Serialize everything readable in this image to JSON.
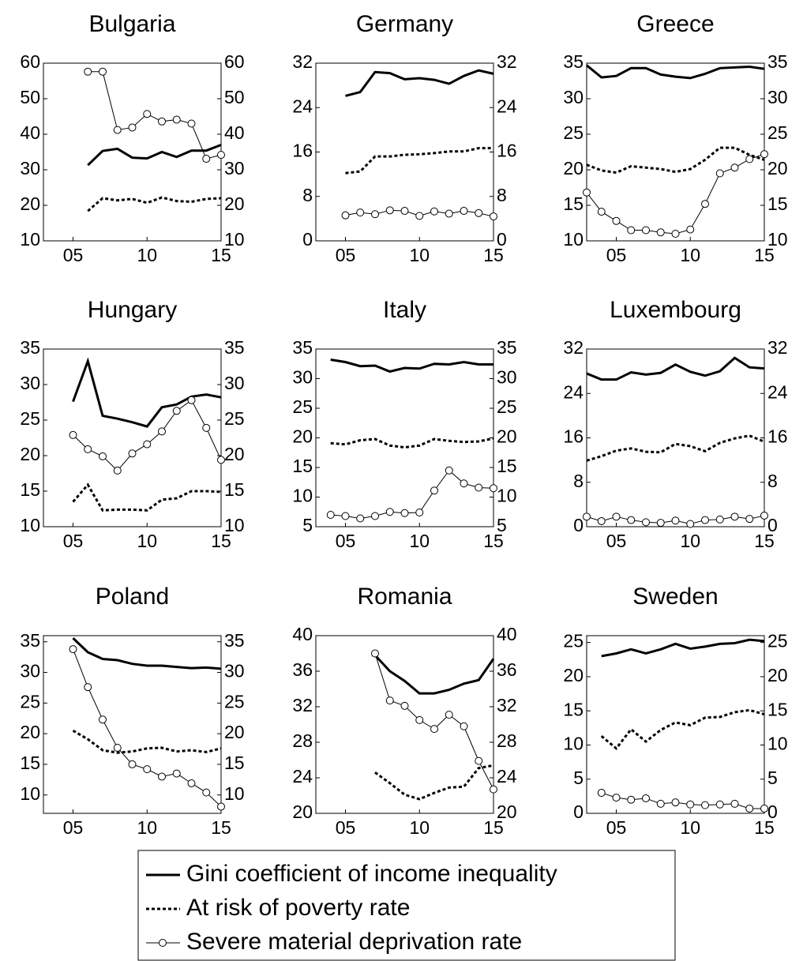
{
  "legend": [
    {
      "name": "Gini coefficient of income inequality",
      "color": "#000000",
      "style": "solid"
    },
    {
      "name": "At risk of poverty rate",
      "color": "#000000",
      "style": "dashed"
    },
    {
      "name": "Severe material deprivation rate",
      "color": "#000000",
      "style": "thin-circle"
    }
  ],
  "chart_data": [
    {
      "type": "line",
      "title": "Bulgaria",
      "xlim": [
        2003,
        2015
      ],
      "xticks": [
        {
          "value": 2005,
          "label": "05"
        },
        {
          "value": 2010,
          "label": "10"
        },
        {
          "value": 2015,
          "label": "15"
        }
      ],
      "ylim": [
        10,
        60
      ],
      "yticks": [
        10,
        20,
        30,
        40,
        50,
        60
      ],
      "y2lim": [
        10,
        60
      ],
      "y2ticks": [
        10,
        20,
        30,
        40,
        50,
        60
      ],
      "x": [
        2006,
        2007,
        2008,
        2009,
        2010,
        2011,
        2012,
        2013,
        2014,
        2015
      ],
      "series": [
        {
          "values": [
            31.3,
            35.3,
            35.9,
            33.4,
            33.2,
            35.0,
            33.6,
            35.4,
            35.4,
            37.0
          ]
        },
        {
          "values": [
            18.4,
            22.0,
            21.4,
            21.8,
            20.7,
            22.2,
            21.2,
            21.0,
            21.8,
            22.0
          ]
        },
        {
          "values": [
            57.6,
            57.6,
            41.2,
            41.9,
            45.7,
            43.6,
            44.1,
            43.0,
            33.1,
            34.2
          ]
        }
      ]
    },
    {
      "type": "line",
      "title": "Germany",
      "xlim": [
        2003,
        2015
      ],
      "xticks": [
        {
          "value": 2005,
          "label": "05"
        },
        {
          "value": 2010,
          "label": "10"
        },
        {
          "value": 2015,
          "label": "15"
        }
      ],
      "ylim": [
        0,
        32
      ],
      "yticks": [
        0,
        8,
        16,
        24,
        32
      ],
      "y2lim": [
        0,
        32
      ],
      "y2ticks": [
        0,
        8,
        16,
        24,
        32
      ],
      "x": [
        2005,
        2006,
        2007,
        2008,
        2009,
        2010,
        2011,
        2012,
        2013,
        2014,
        2015
      ],
      "series": [
        {
          "values": [
            26.1,
            26.8,
            30.4,
            30.2,
            29.1,
            29.3,
            29.0,
            28.3,
            29.7,
            30.7,
            30.1
          ]
        },
        {
          "values": [
            12.2,
            12.5,
            15.2,
            15.2,
            15.5,
            15.6,
            15.8,
            16.1,
            16.1,
            16.7,
            16.7
          ]
        },
        {
          "values": [
            4.6,
            5.1,
            4.8,
            5.5,
            5.4,
            4.5,
            5.3,
            4.9,
            5.4,
            5.0,
            4.4
          ]
        }
      ]
    },
    {
      "type": "line",
      "title": "Greece",
      "xlim": [
        2003,
        2015
      ],
      "xticks": [
        {
          "value": 2005,
          "label": "05"
        },
        {
          "value": 2010,
          "label": "10"
        },
        {
          "value": 2015,
          "label": "15"
        }
      ],
      "ylim": [
        10,
        35
      ],
      "yticks": [
        10,
        15,
        20,
        25,
        30,
        35
      ],
      "y2lim": [
        10,
        35
      ],
      "y2ticks": [
        10,
        15,
        20,
        25,
        30,
        35
      ],
      "x": [
        2003,
        2004,
        2005,
        2006,
        2007,
        2008,
        2009,
        2010,
        2011,
        2012,
        2013,
        2014,
        2015
      ],
      "series": [
        {
          "values": [
            34.7,
            33.0,
            33.2,
            34.3,
            34.3,
            33.4,
            33.1,
            32.9,
            33.5,
            34.3,
            34.4,
            34.5,
            34.2
          ]
        },
        {
          "values": [
            20.7,
            19.9,
            19.6,
            20.5,
            20.3,
            20.1,
            19.7,
            20.1,
            21.4,
            23.1,
            23.1,
            22.1,
            21.4
          ]
        },
        {
          "values": [
            16.8,
            14.1,
            12.8,
            11.5,
            11.5,
            11.2,
            11.0,
            11.6,
            15.2,
            19.5,
            20.3,
            21.5,
            22.2
          ]
        }
      ]
    },
    {
      "type": "line",
      "title": "Hungary",
      "xlim": [
        2003,
        2015
      ],
      "xticks": [
        {
          "value": 2005,
          "label": "05"
        },
        {
          "value": 2010,
          "label": "10"
        },
        {
          "value": 2015,
          "label": "15"
        }
      ],
      "ylim": [
        10,
        35
      ],
      "yticks": [
        10,
        15,
        20,
        25,
        30,
        35
      ],
      "y2lim": [
        10,
        35
      ],
      "y2ticks": [
        10,
        15,
        20,
        25,
        30,
        35
      ],
      "x": [
        2005,
        2006,
        2007,
        2008,
        2009,
        2010,
        2011,
        2012,
        2013,
        2014,
        2015
      ],
      "series": [
        {
          "values": [
            27.6,
            33.3,
            25.6,
            25.2,
            24.7,
            24.1,
            26.8,
            27.2,
            28.3,
            28.6,
            28.2
          ]
        },
        {
          "values": [
            13.5,
            15.9,
            12.3,
            12.4,
            12.4,
            12.3,
            13.8,
            14.0,
            15.0,
            15.0,
            14.9
          ]
        },
        {
          "values": [
            22.9,
            20.9,
            19.9,
            17.9,
            20.3,
            21.6,
            23.4,
            26.3,
            27.8,
            23.9,
            19.4
          ]
        }
      ]
    },
    {
      "type": "line",
      "title": "Italy",
      "xlim": [
        2003,
        2015
      ],
      "xticks": [
        {
          "value": 2005,
          "label": "05"
        },
        {
          "value": 2010,
          "label": "10"
        },
        {
          "value": 2015,
          "label": "15"
        }
      ],
      "ylim": [
        5,
        35
      ],
      "yticks": [
        5,
        10,
        15,
        20,
        25,
        30,
        35
      ],
      "y2lim": [
        5,
        35
      ],
      "y2ticks": [
        5,
        10,
        15,
        20,
        25,
        30,
        35
      ],
      "x": [
        2004,
        2005,
        2006,
        2007,
        2008,
        2009,
        2010,
        2011,
        2012,
        2013,
        2014,
        2015
      ],
      "series": [
        {
          "values": [
            33.2,
            32.8,
            32.1,
            32.2,
            31.2,
            31.8,
            31.7,
            32.5,
            32.4,
            32.8,
            32.4,
            32.4
          ]
        },
        {
          "values": [
            19.1,
            18.9,
            19.6,
            19.8,
            18.7,
            18.4,
            18.7,
            19.8,
            19.5,
            19.3,
            19.4,
            19.9
          ]
        },
        {
          "values": [
            7.0,
            6.8,
            6.4,
            6.8,
            7.5,
            7.3,
            7.4,
            11.1,
            14.5,
            12.3,
            11.6,
            11.5
          ]
        }
      ]
    },
    {
      "type": "line",
      "title": "Luxembourg",
      "xlim": [
        2003,
        2015
      ],
      "xticks": [
        {
          "value": 2005,
          "label": "05"
        },
        {
          "value": 2010,
          "label": "10"
        },
        {
          "value": 2015,
          "label": "15"
        }
      ],
      "ylim": [
        0,
        32
      ],
      "yticks": [
        0,
        8,
        16,
        24,
        32
      ],
      "y2lim": [
        0,
        32
      ],
      "y2ticks": [
        0,
        8,
        16,
        24,
        32
      ],
      "x": [
        2003,
        2004,
        2005,
        2006,
        2007,
        2008,
        2009,
        2010,
        2011,
        2012,
        2013,
        2014,
        2015
      ],
      "series": [
        {
          "values": [
            27.6,
            26.5,
            26.5,
            27.8,
            27.4,
            27.7,
            29.2,
            27.9,
            27.2,
            28.0,
            30.4,
            28.7,
            28.5
          ]
        },
        {
          "values": [
            11.9,
            12.7,
            13.7,
            14.1,
            13.5,
            13.4,
            14.9,
            14.5,
            13.6,
            15.1,
            15.9,
            16.4,
            15.3
          ]
        },
        {
          "values": [
            1.8,
            1.0,
            1.8,
            1.2,
            0.8,
            0.7,
            1.1,
            0.5,
            1.2,
            1.3,
            1.8,
            1.4,
            2.0
          ]
        }
      ]
    },
    {
      "type": "line",
      "title": "Poland",
      "xlim": [
        2003,
        2015
      ],
      "xticks": [
        {
          "value": 2005,
          "label": "05"
        },
        {
          "value": 2010,
          "label": "10"
        },
        {
          "value": 2015,
          "label": "15"
        }
      ],
      "ylim": [
        7,
        36
      ],
      "yticks": [
        10,
        15,
        20,
        25,
        30,
        35
      ],
      "y2lim": [
        7,
        36
      ],
      "y2ticks": [
        10,
        15,
        20,
        25,
        30,
        35
      ],
      "x": [
        2005,
        2006,
        2007,
        2008,
        2009,
        2010,
        2011,
        2012,
        2013,
        2014,
        2015
      ],
      "series": [
        {
          "values": [
            35.6,
            33.3,
            32.2,
            32.0,
            31.4,
            31.1,
            31.1,
            30.9,
            30.7,
            30.8,
            30.6
          ]
        },
        {
          "values": [
            20.5,
            19.1,
            17.3,
            16.9,
            17.1,
            17.6,
            17.7,
            17.1,
            17.3,
            17.0,
            17.6
          ]
        },
        {
          "values": [
            33.8,
            27.6,
            22.3,
            17.7,
            15.0,
            14.2,
            13.0,
            13.5,
            11.9,
            10.4,
            8.1
          ]
        }
      ]
    },
    {
      "type": "line",
      "title": "Romania",
      "xlim": [
        2003,
        2015
      ],
      "xticks": [
        {
          "value": 2005,
          "label": "05"
        },
        {
          "value": 2010,
          "label": "10"
        },
        {
          "value": 2015,
          "label": "15"
        }
      ],
      "ylim": [
        20,
        40
      ],
      "yticks": [
        20,
        24,
        28,
        32,
        36,
        40
      ],
      "y2lim": [
        20,
        40
      ],
      "y2ticks": [
        20,
        24,
        28,
        32,
        36,
        40
      ],
      "x": [
        2007,
        2008,
        2009,
        2010,
        2011,
        2012,
        2013,
        2014,
        2015
      ],
      "series": [
        {
          "values": [
            37.8,
            36.0,
            34.9,
            33.5,
            33.5,
            33.9,
            34.6,
            35.0,
            37.4
          ]
        },
        {
          "values": [
            24.6,
            23.4,
            22.1,
            21.6,
            22.3,
            22.9,
            23.0,
            25.1,
            25.4
          ]
        },
        {
          "values": [
            38.0,
            32.7,
            32.1,
            30.5,
            29.5,
            31.1,
            29.8,
            25.9,
            22.7
          ]
        }
      ]
    },
    {
      "type": "line",
      "title": "Sweden",
      "xlim": [
        2003,
        2015
      ],
      "xticks": [
        {
          "value": 2005,
          "label": "05"
        },
        {
          "value": 2010,
          "label": "10"
        },
        {
          "value": 2015,
          "label": "15"
        }
      ],
      "ylim": [
        0,
        26
      ],
      "yticks": [
        0,
        5,
        10,
        15,
        20,
        25
      ],
      "y2lim": [
        0,
        26
      ],
      "y2ticks": [
        0,
        5,
        10,
        15,
        20,
        25
      ],
      "x": [
        2004,
        2005,
        2006,
        2007,
        2008,
        2009,
        2010,
        2011,
        2012,
        2013,
        2014,
        2015
      ],
      "series": [
        {
          "values": [
            23.0,
            23.4,
            24.0,
            23.4,
            24.0,
            24.8,
            24.1,
            24.4,
            24.8,
            24.9,
            25.4,
            25.2
          ]
        },
        {
          "values": [
            11.3,
            9.5,
            12.3,
            10.5,
            12.2,
            13.3,
            12.9,
            14.0,
            14.1,
            14.8,
            15.1,
            14.5
          ]
        },
        {
          "values": [
            3.0,
            2.3,
            2.0,
            2.2,
            1.4,
            1.6,
            1.3,
            1.2,
            1.3,
            1.4,
            0.7,
            0.7
          ]
        }
      ]
    }
  ]
}
